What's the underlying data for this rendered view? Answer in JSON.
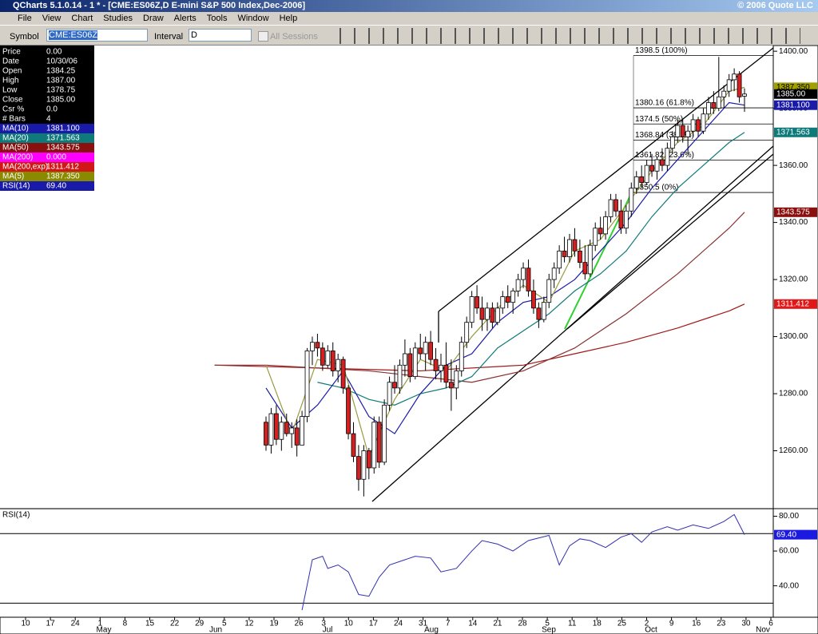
{
  "window": {
    "title": "QCharts 5.1.0.14 - 1 * - [CME:ES06Z,D E-mini S&P 500 Index,Dec-2006]",
    "copyright": "© 2006 Quote LLC",
    "menu": [
      "File",
      "View",
      "Chart",
      "Studies",
      "Draw",
      "Alerts",
      "Tools",
      "Window",
      "Help"
    ],
    "toolbar": {
      "symbol_label": "Symbol",
      "symbol": "CME:ES06Z",
      "interval_label": "Interval",
      "interval": "D",
      "sessions": "All Sessions"
    }
  },
  "data_panel": [
    [
      "Price",
      "0.00",
      "#000000"
    ],
    [
      "Date",
      "10/30/06",
      "#000000"
    ],
    [
      "Open",
      "1384.25",
      "#000000"
    ],
    [
      "High",
      "1387.00",
      "#000000"
    ],
    [
      "Low",
      "1378.75",
      "#000000"
    ],
    [
      "Close",
      "1385.00",
      "#000000"
    ],
    [
      "Csr %",
      "0.0",
      "#000000"
    ],
    [
      "# Bars",
      "4",
      "#000000"
    ],
    [
      "MA(10)",
      "1381.100",
      "#1a1aa8"
    ],
    [
      "MA(20)",
      "1371.563",
      "#0e7a7a"
    ],
    [
      "MA(50)",
      "1343.575",
      "#8a1010"
    ],
    [
      "MA(200)",
      "0.000",
      "#ff00ff"
    ],
    [
      "MA(200,exp)",
      "1311.412",
      "#d01818"
    ],
    [
      "MA(5)",
      "1387.350",
      "#8a8a00"
    ],
    [
      "RSI(14)",
      "69.40",
      "#1a1aa8"
    ]
  ],
  "chart_data": {
    "type": "candlestick",
    "up_color": "#ffffff",
    "down_color": "#d42020",
    "ylim": [
      1240,
      1402
    ],
    "yticks": [
      {
        "value": 1400,
        "label": "1400.00"
      },
      {
        "value": 1380,
        "label": "1380.00"
      },
      {
        "value": 1360,
        "label": "1360.00"
      },
      {
        "value": 1340,
        "label": "1340.00"
      },
      {
        "value": 1320,
        "label": "1320.00"
      },
      {
        "value": 1300,
        "label": "1300.00"
      },
      {
        "value": 1280,
        "label": "1280.00"
      },
      {
        "value": 1260,
        "label": "1260.00"
      }
    ],
    "candles": [
      [
        1270,
        1272,
        1260,
        1262
      ],
      [
        1262,
        1275,
        1259,
        1273
      ],
      [
        1273,
        1276,
        1262,
        1264
      ],
      [
        1264,
        1272,
        1260,
        1270
      ],
      [
        1270,
        1273,
        1265,
        1266
      ],
      [
        1266,
        1270,
        1261,
        1268
      ],
      [
        1268,
        1271,
        1258,
        1262
      ],
      [
        1262,
        1274,
        1262,
        1272
      ],
      [
        1272,
        1296,
        1270,
        1295
      ],
      [
        1295,
        1300,
        1290,
        1298
      ],
      [
        1298,
        1301,
        1293,
        1296
      ],
      [
        1296,
        1298,
        1288,
        1290
      ],
      [
        1290,
        1297,
        1289,
        1295
      ],
      [
        1295,
        1298,
        1286,
        1288
      ],
      [
        1288,
        1294,
        1284,
        1292
      ],
      [
        1292,
        1293,
        1280,
        1282
      ],
      [
        1282,
        1283,
        1264,
        1266
      ],
      [
        1266,
        1270,
        1256,
        1258
      ],
      [
        1258,
        1262,
        1246,
        1250
      ],
      [
        1250,
        1262,
        1244,
        1260
      ],
      [
        1260,
        1261,
        1250,
        1254
      ],
      [
        1254,
        1272,
        1252,
        1270
      ],
      [
        1270,
        1272,
        1254,
        1256
      ],
      [
        1256,
        1278,
        1255,
        1276
      ],
      [
        1276,
        1286,
        1274,
        1284
      ],
      [
        1284,
        1290,
        1280,
        1282
      ],
      [
        1282,
        1292,
        1280,
        1290
      ],
      [
        1290,
        1299,
        1286,
        1294
      ],
      [
        1294,
        1296,
        1284,
        1286
      ],
      [
        1286,
        1298,
        1285,
        1296
      ],
      [
        1296,
        1301,
        1292,
        1294
      ],
      [
        1294,
        1300,
        1288,
        1298
      ],
      [
        1298,
        1302,
        1290,
        1292
      ],
      [
        1292,
        1296,
        1285,
        1288
      ],
      [
        1288,
        1294,
        1284,
        1290
      ],
      [
        1290,
        1298,
        1282,
        1284
      ],
      [
        1284,
        1292,
        1274,
        1282
      ],
      [
        1282,
        1290,
        1278,
        1288
      ],
      [
        1288,
        1300,
        1286,
        1298
      ],
      [
        1298,
        1307,
        1296,
        1305
      ],
      [
        1305,
        1316,
        1303,
        1314
      ],
      [
        1314,
        1318,
        1308,
        1310
      ],
      [
        1310,
        1314,
        1302,
        1306
      ],
      [
        1306,
        1312,
        1302,
        1310
      ],
      [
        1310,
        1312,
        1303,
        1305
      ],
      [
        1305,
        1312,
        1304,
        1310
      ],
      [
        1310,
        1316,
        1308,
        1314
      ],
      [
        1314,
        1318,
        1310,
        1312
      ],
      [
        1312,
        1317,
        1308,
        1316
      ],
      [
        1316,
        1322,
        1314,
        1320
      ],
      [
        1320,
        1326,
        1317,
        1324
      ],
      [
        1324,
        1327,
        1314,
        1316
      ],
      [
        1316,
        1320,
        1308,
        1310
      ],
      [
        1310,
        1312,
        1303,
        1306
      ],
      [
        1306,
        1314,
        1305,
        1312
      ],
      [
        1312,
        1322,
        1310,
        1320
      ],
      [
        1320,
        1326,
        1317,
        1324
      ],
      [
        1324,
        1332,
        1322,
        1330
      ],
      [
        1330,
        1335,
        1326,
        1328
      ],
      [
        1328,
        1336,
        1326,
        1334
      ],
      [
        1334,
        1338,
        1328,
        1330
      ],
      [
        1330,
        1334,
        1324,
        1326
      ],
      [
        1326,
        1332,
        1320,
        1322
      ],
      [
        1322,
        1334,
        1321,
        1332
      ],
      [
        1332,
        1340,
        1330,
        1338
      ],
      [
        1338,
        1342,
        1334,
        1336
      ],
      [
        1336,
        1344,
        1334,
        1342
      ],
      [
        1342,
        1350,
        1340,
        1348
      ],
      [
        1348,
        1350,
        1342,
        1344
      ],
      [
        1344,
        1348,
        1336,
        1338
      ],
      [
        1338,
        1346,
        1336,
        1344
      ],
      [
        1344,
        1354,
        1342,
        1352
      ],
      [
        1352,
        1358,
        1350,
        1356
      ],
      [
        1356,
        1360,
        1352,
        1354
      ],
      [
        1354,
        1362,
        1353,
        1360
      ],
      [
        1360,
        1364,
        1356,
        1358
      ],
      [
        1358,
        1363,
        1355,
        1362
      ],
      [
        1362,
        1366,
        1358,
        1360
      ],
      [
        1360,
        1368,
        1358,
        1366
      ],
      [
        1366,
        1372,
        1364,
        1370
      ],
      [
        1370,
        1376,
        1368,
        1374
      ],
      [
        1374,
        1376,
        1368,
        1370
      ],
      [
        1370,
        1374,
        1364,
        1372
      ],
      [
        1372,
        1378,
        1370,
        1376
      ],
      [
        1376,
        1377,
        1370,
        1372
      ],
      [
        1372,
        1380,
        1371,
        1378
      ],
      [
        1378,
        1384,
        1376,
        1382
      ],
      [
        1382,
        1386,
        1378,
        1380
      ],
      [
        1380,
        1398,
        1379,
        1384
      ],
      [
        1384,
        1388,
        1380,
        1386
      ],
      [
        1386,
        1392,
        1384,
        1390
      ],
      [
        1390,
        1394,
        1386,
        1392
      ],
      [
        1392,
        1393,
        1382,
        1384
      ],
      [
        1384.25,
        1387,
        1378.75,
        1385
      ]
    ],
    "series": [
      {
        "name": "MA(200,exp)",
        "color": "#a01818",
        "x": [
          -10,
          10,
          30,
          50,
          60,
          70,
          80,
          90,
          93
        ],
        "values": [
          1290,
          1289,
          1288,
          1290,
          1294,
          1298,
          1303,
          1309,
          1311.412
        ]
      },
      {
        "name": "MA(50)",
        "color": "#8a3030",
        "x": [
          -10,
          0,
          10,
          20,
          30,
          40,
          50,
          60,
          70,
          80,
          90,
          93
        ],
        "values": [
          1290,
          1290,
          1289,
          1288,
          1286,
          1284,
          1288,
          1296,
          1308,
          1322,
          1338,
          1343.575
        ]
      },
      {
        "name": "MA(20)",
        "color": "#0e7a7a",
        "x": [
          10,
          15,
          20,
          25,
          30,
          35,
          40,
          45,
          50,
          55,
          60,
          65,
          70,
          75,
          80,
          85,
          90,
          93
        ],
        "values": [
          1284,
          1282,
          1278,
          1276,
          1280,
          1282,
          1286,
          1296,
          1302,
          1308,
          1316,
          1322,
          1330,
          1342,
          1352,
          1360,
          1368,
          1371.563
        ]
      },
      {
        "name": "MA(10)",
        "color": "#1a1aa8",
        "x": [
          0,
          5,
          10,
          15,
          20,
          25,
          30,
          35,
          40,
          45,
          50,
          55,
          60,
          65,
          70,
          75,
          80,
          85,
          90,
          93
        ],
        "values": [
          1282,
          1268,
          1276,
          1288,
          1272,
          1266,
          1280,
          1290,
          1294,
          1305,
          1312,
          1314,
          1320,
          1330,
          1340,
          1352,
          1362,
          1372,
          1382,
          1381.1
        ]
      },
      {
        "name": "MA(5)",
        "color": "#9a9a40",
        "x": [
          0,
          5,
          10,
          15,
          20,
          25,
          30,
          35,
          40,
          45,
          50,
          55,
          60,
          65,
          70,
          75,
          80,
          85,
          90,
          93
        ],
        "values": [
          1290,
          1266,
          1292,
          1290,
          1258,
          1278,
          1292,
          1288,
          1300,
          1310,
          1318,
          1312,
          1330,
          1334,
          1346,
          1358,
          1368,
          1374,
          1386,
          1387.35
        ]
      }
    ],
    "fib": [
      {
        "value": 1398.5,
        "label": "1398.5 (100%)"
      },
      {
        "value": 1380.16,
        "label": "1380.16 (61.8%)"
      },
      {
        "value": 1374.5,
        "label": "1374.5 (50%)"
      },
      {
        "value": 1368.84,
        "label": "1368.84 (38.2%)"
      },
      {
        "value": 1361.82,
        "label": "1361.82 (23.6%)"
      },
      {
        "value": 1350.5,
        "label": "1350.5 (0%)"
      }
    ],
    "tags": [
      {
        "value": 1387.35,
        "label": "1387.350",
        "color": "#a0a000"
      },
      {
        "value": 1385,
        "label": "1385.00",
        "color": "#000000"
      },
      {
        "value": 1381.1,
        "label": "1381.100",
        "color": "#1a1aa8"
      },
      {
        "value": 1371.563,
        "label": "1371.563",
        "color": "#0e7a7a"
      },
      {
        "value": 1343.575,
        "label": "1343.575",
        "color": "#8a1010"
      },
      {
        "value": 1311.412,
        "label": "1311.412",
        "color": "#e01818"
      }
    ],
    "rsi": {
      "title": "RSI(14)",
      "color": "#3030b0",
      "ylim": [
        21,
        83
      ],
      "yticks": [
        {
          "value": 80,
          "label": "80.00"
        },
        {
          "value": 60,
          "label": "60.00"
        },
        {
          "value": 40,
          "label": "40.00"
        }
      ],
      "levels": [
        70,
        30
      ],
      "x": [
        7,
        9,
        11,
        12,
        14,
        16,
        18,
        20,
        22,
        24,
        27,
        29,
        32,
        34,
        37,
        40,
        42,
        45,
        48,
        51,
        55,
        57,
        59,
        61,
        63,
        66,
        69,
        71,
        73,
        75,
        78,
        80,
        83,
        86,
        89,
        91,
        93
      ],
      "values": [
        26,
        55,
        57,
        50,
        52,
        48,
        35,
        34,
        45,
        52,
        55,
        57,
        56,
        48,
        50,
        60,
        66,
        64,
        60,
        66,
        69,
        52,
        63,
        67,
        66,
        62,
        68,
        70,
        65,
        71,
        74,
        72,
        75,
        73,
        77,
        81,
        69.4
      ],
      "tag": {
        "value": 69.4,
        "label": "69.40"
      }
    },
    "week_labels": [
      "10",
      "17",
      "24",
      "1",
      "8",
      "15",
      "22",
      "29",
      "5",
      "12",
      "19",
      "26",
      "3",
      "10",
      "17",
      "24",
      "31",
      "7",
      "14",
      "21",
      "28",
      "5",
      "11",
      "18",
      "25",
      "2",
      "9",
      "16",
      "23",
      "30",
      "6"
    ],
    "months": [
      "May",
      "Jun",
      "Jul",
      "Aug",
      "Sep",
      "Oct",
      "Nov"
    ]
  }
}
